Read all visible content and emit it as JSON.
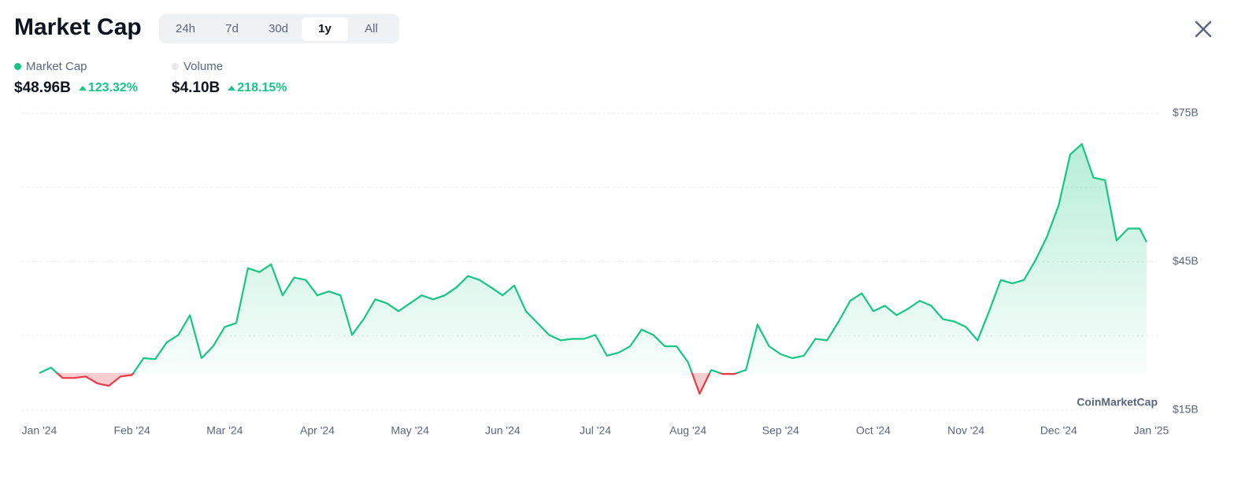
{
  "header": {
    "title": "Market Cap",
    "tabs": [
      "24h",
      "7d",
      "30d",
      "1y",
      "All"
    ],
    "active_tab": 3
  },
  "stats": [
    {
      "name": "Market Cap",
      "color": "#16c784",
      "value": "$48.96B",
      "change": "123.32%"
    },
    {
      "name": "Volume",
      "color": "#e6e8ec",
      "value": "$4.10B",
      "change": "218.15%"
    }
  ],
  "chart_data": {
    "type": "line",
    "watermark": "CoinMarketCap",
    "up_color": "#16c784",
    "down_color": "#ea3943",
    "series": [
      {
        "name": "Market Cap",
        "color": "#16c784",
        "x": [
          0,
          0.125,
          0.25,
          0.375,
          0.5,
          0.625,
          0.75,
          0.875,
          1,
          1.125,
          1.25,
          1.375,
          1.5,
          1.625,
          1.75,
          1.875,
          2,
          2.125,
          2.25,
          2.375,
          2.5,
          2.625,
          2.75,
          2.875,
          3,
          3.125,
          3.25,
          3.375,
          3.5,
          3.625,
          3.75,
          3.875,
          4,
          4.125,
          4.25,
          4.375,
          4.5,
          4.625,
          4.75,
          4.875,
          5,
          5.125,
          5.25,
          5.375,
          5.5,
          5.625,
          5.75,
          5.875,
          6,
          6.125,
          6.25,
          6.375,
          6.5,
          6.625,
          6.75,
          6.875,
          7,
          7.125,
          7.25,
          7.375,
          7.5,
          7.625,
          7.75,
          7.875,
          8,
          8.125,
          8.25,
          8.375,
          8.5,
          8.625,
          8.75,
          8.875,
          9,
          9.125,
          9.25,
          9.375,
          9.5,
          9.625,
          9.75,
          9.875,
          10,
          10.125,
          10.25,
          10.375,
          10.5,
          10.625,
          10.75,
          10.875,
          11,
          11.125,
          11.25,
          11.375,
          11.5,
          11.625,
          11.75,
          11.875,
          11.95
        ],
        "values": [
          22.5,
          23.6,
          21.5,
          21.5,
          21.8,
          20.4,
          19.9,
          21.8,
          22.1,
          25.5,
          25.3,
          28.7,
          30.2,
          34.2,
          25.5,
          27.9,
          31.8,
          32.6,
          43.7,
          42.9,
          44.5,
          38.2,
          41.8,
          41.3,
          38.2,
          39.0,
          38.2,
          30.2,
          33.4,
          37.4,
          36.6,
          35.0,
          36.6,
          38.2,
          37.4,
          38.2,
          39.8,
          42.1,
          41.3,
          39.8,
          38.2,
          40.2,
          35.0,
          32.6,
          30.2,
          29.1,
          29.4,
          29.4,
          30.2,
          26.0,
          26.6,
          27.9,
          31.3,
          30.2,
          27.9,
          27.9,
          24.7,
          18.3,
          23.1,
          22.3,
          22.3,
          23.1,
          32.3,
          27.9,
          26.3,
          25.5,
          26.0,
          29.4,
          29.1,
          32.9,
          37.1,
          38.6,
          35.0,
          36.1,
          34.2,
          35.5,
          37.1,
          36.1,
          33.4,
          32.9,
          31.8,
          29.1,
          35.0,
          41.3,
          40.6,
          41.3,
          45.3,
          50.1,
          56.4,
          66.7,
          68.8,
          62.0,
          61.5,
          49.3,
          51.7,
          51.7,
          48.96
        ]
      }
    ],
    "xlim": [
      0,
      12
    ],
    "xticks": [
      {
        "value": 0,
        "label": "Jan '24"
      },
      {
        "value": 1,
        "label": "Feb '24"
      },
      {
        "value": 2,
        "label": "Mar '24"
      },
      {
        "value": 3,
        "label": "Apr '24"
      },
      {
        "value": 4,
        "label": "May '24"
      },
      {
        "value": 5,
        "label": "Jun '24"
      },
      {
        "value": 6,
        "label": "Jul '24"
      },
      {
        "value": 7,
        "label": "Aug '24"
      },
      {
        "value": 8,
        "label": "Sep '24"
      },
      {
        "value": 9,
        "label": "Oct '24"
      },
      {
        "value": 10,
        "label": "Nov '24"
      },
      {
        "value": 11,
        "label": "Dec '24"
      },
      {
        "value": 12,
        "label": "Jan '25"
      }
    ],
    "ylim": [
      15,
      75
    ],
    "yticks": [
      {
        "value": 75,
        "label": "$75B"
      },
      {
        "value": 45,
        "label": "$45B"
      },
      {
        "value": 15,
        "label": "$15B"
      }
    ],
    "minor_yticks": [
      60,
      30
    ],
    "grid": true
  }
}
